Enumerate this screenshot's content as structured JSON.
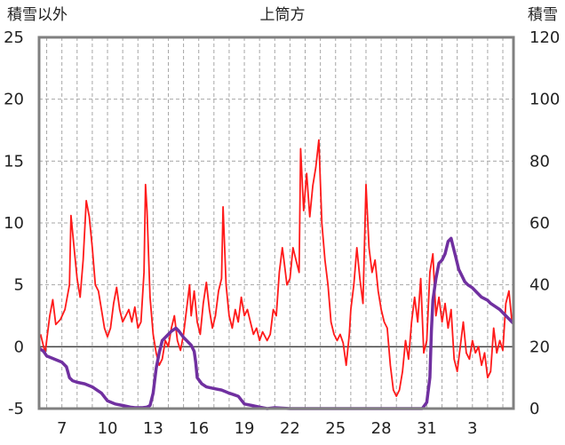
{
  "chart_data": {
    "type": "line",
    "title": "上筒方",
    "left_axis_label": "積雪以外",
    "right_axis_label": "積雪",
    "x_tick_labels": [
      "7",
      "10",
      "13",
      "16",
      "19",
      "22",
      "25",
      "28",
      "31",
      "3"
    ],
    "y_left": {
      "min": -5,
      "max": 25,
      "ticks": [
        -5,
        0,
        5,
        10,
        15,
        20,
        25
      ]
    },
    "y_right": {
      "min": 0,
      "max": 120,
      "ticks": [
        0,
        20,
        40,
        60,
        80,
        100,
        120
      ]
    },
    "x_range": [
      5.5,
      36.7
    ],
    "grid": {
      "horizontal": "dashed",
      "vertical": "dashed"
    },
    "colors": {
      "series_red": "#ff1a1a",
      "series_purple": "#7030a0",
      "frame": "#808080",
      "zero_line": "#404040"
    },
    "series": [
      {
        "axis": "left",
        "color": "#ff1a1a",
        "points": [
          [
            5.6,
            1.0
          ],
          [
            5.9,
            -0.5
          ],
          [
            6.2,
            2.5
          ],
          [
            6.4,
            3.8
          ],
          [
            6.6,
            1.8
          ],
          [
            6.9,
            2.2
          ],
          [
            7.2,
            3.0
          ],
          [
            7.5,
            5.0
          ],
          [
            7.6,
            10.6
          ],
          [
            7.8,
            8.0
          ],
          [
            8.0,
            5.5
          ],
          [
            8.2,
            4.0
          ],
          [
            8.4,
            7.0
          ],
          [
            8.6,
            11.8
          ],
          [
            8.8,
            10.5
          ],
          [
            9.0,
            8.0
          ],
          [
            9.2,
            5.0
          ],
          [
            9.4,
            4.5
          ],
          [
            9.6,
            3.0
          ],
          [
            9.8,
            1.5
          ],
          [
            10.0,
            0.8
          ],
          [
            10.2,
            1.5
          ],
          [
            10.4,
            3.5
          ],
          [
            10.6,
            4.8
          ],
          [
            10.8,
            3.0
          ],
          [
            11.0,
            2.0
          ],
          [
            11.2,
            2.5
          ],
          [
            11.4,
            3.0
          ],
          [
            11.6,
            2.0
          ],
          [
            11.8,
            3.2
          ],
          [
            12.0,
            1.5
          ],
          [
            12.2,
            2.0
          ],
          [
            12.4,
            6.0
          ],
          [
            12.5,
            13.1
          ],
          [
            12.6,
            11.0
          ],
          [
            12.8,
            4.0
          ],
          [
            13.0,
            1.0
          ],
          [
            13.2,
            -0.5
          ],
          [
            13.4,
            -1.5
          ],
          [
            13.6,
            -1.0
          ],
          [
            13.8,
            0.5
          ],
          [
            14.0,
            0.0
          ],
          [
            14.2,
            1.5
          ],
          [
            14.4,
            2.5
          ],
          [
            14.6,
            0.5
          ],
          [
            14.8,
            -0.3
          ],
          [
            15.0,
            1.0
          ],
          [
            15.2,
            3.0
          ],
          [
            15.4,
            5.0
          ],
          [
            15.5,
            2.5
          ],
          [
            15.7,
            4.5
          ],
          [
            15.9,
            2.0
          ],
          [
            16.1,
            1.0
          ],
          [
            16.3,
            3.5
          ],
          [
            16.5,
            5.2
          ],
          [
            16.7,
            3.0
          ],
          [
            16.9,
            1.5
          ],
          [
            17.1,
            2.5
          ],
          [
            17.3,
            4.5
          ],
          [
            17.5,
            5.5
          ],
          [
            17.6,
            11.3
          ],
          [
            17.8,
            5.0
          ],
          [
            18.0,
            2.5
          ],
          [
            18.2,
            1.5
          ],
          [
            18.4,
            3.0
          ],
          [
            18.6,
            2.0
          ],
          [
            18.8,
            4.0
          ],
          [
            19.0,
            2.5
          ],
          [
            19.2,
            3.0
          ],
          [
            19.4,
            2.0
          ],
          [
            19.6,
            1.0
          ],
          [
            19.8,
            1.5
          ],
          [
            20.0,
            0.5
          ],
          [
            20.2,
            1.2
          ],
          [
            20.5,
            0.5
          ],
          [
            20.7,
            1.0
          ],
          [
            20.9,
            3.0
          ],
          [
            21.1,
            2.5
          ],
          [
            21.3,
            6.0
          ],
          [
            21.5,
            8.0
          ],
          [
            21.6,
            7.0
          ],
          [
            21.8,
            5.0
          ],
          [
            22.0,
            5.5
          ],
          [
            22.2,
            8.0
          ],
          [
            22.4,
            7.0
          ],
          [
            22.6,
            6.0
          ],
          [
            22.7,
            16.0
          ],
          [
            22.9,
            11.0
          ],
          [
            23.1,
            14.0
          ],
          [
            23.3,
            10.5
          ],
          [
            23.5,
            13.0
          ],
          [
            23.7,
            14.5
          ],
          [
            23.9,
            16.7
          ],
          [
            24.1,
            10.0
          ],
          [
            24.3,
            7.0
          ],
          [
            24.5,
            5.0
          ],
          [
            24.7,
            2.0
          ],
          [
            24.9,
            1.0
          ],
          [
            25.1,
            0.5
          ],
          [
            25.3,
            1.0
          ],
          [
            25.5,
            0.3
          ],
          [
            25.7,
            -1.5
          ],
          [
            25.9,
            1.0
          ],
          [
            26.0,
            3.0
          ],
          [
            26.2,
            5.0
          ],
          [
            26.4,
            8.0
          ],
          [
            26.6,
            5.5
          ],
          [
            26.8,
            3.5
          ],
          [
            27.0,
            13.1
          ],
          [
            27.2,
            8.0
          ],
          [
            27.4,
            6.0
          ],
          [
            27.6,
            7.0
          ],
          [
            27.8,
            4.5
          ],
          [
            28.0,
            3.0
          ],
          [
            28.2,
            2.0
          ],
          [
            28.4,
            1.5
          ],
          [
            28.6,
            -1.5
          ],
          [
            28.8,
            -3.5
          ],
          [
            29.0,
            -4.0
          ],
          [
            29.2,
            -3.5
          ],
          [
            29.4,
            -2.0
          ],
          [
            29.6,
            0.5
          ],
          [
            29.8,
            -1.0
          ],
          [
            30.0,
            2.0
          ],
          [
            30.2,
            4.0
          ],
          [
            30.4,
            2.0
          ],
          [
            30.6,
            5.5
          ],
          [
            30.8,
            -0.5
          ],
          [
            31.0,
            0.5
          ],
          [
            31.2,
            6.0
          ],
          [
            31.4,
            7.5
          ],
          [
            31.6,
            2.5
          ],
          [
            31.8,
            4.0
          ],
          [
            32.0,
            2.0
          ],
          [
            32.2,
            3.5
          ],
          [
            32.4,
            1.5
          ],
          [
            32.6,
            3.0
          ],
          [
            32.8,
            -1.0
          ],
          [
            33.0,
            -2.0
          ],
          [
            33.2,
            0.0
          ],
          [
            33.4,
            2.0
          ],
          [
            33.6,
            -0.5
          ],
          [
            33.8,
            -1.0
          ],
          [
            34.0,
            0.5
          ],
          [
            34.2,
            -0.5
          ],
          [
            34.4,
            0.0
          ],
          [
            34.6,
            -1.5
          ],
          [
            34.8,
            -0.5
          ],
          [
            35.0,
            -2.5
          ],
          [
            35.2,
            -2.0
          ],
          [
            35.4,
            1.5
          ],
          [
            35.6,
            -0.5
          ],
          [
            35.8,
            0.5
          ],
          [
            36.0,
            -0.3
          ],
          [
            36.2,
            3.5
          ],
          [
            36.4,
            4.5
          ],
          [
            36.6,
            2.0
          ],
          [
            36.7,
            2.0
          ]
        ]
      },
      {
        "axis": "right",
        "color": "#7030a0",
        "points": [
          [
            5.5,
            19.5
          ],
          [
            5.8,
            18.5
          ],
          [
            6.0,
            17.0
          ],
          [
            6.5,
            16.0
          ],
          [
            7.0,
            15.0
          ],
          [
            7.3,
            13.5
          ],
          [
            7.5,
            10.0
          ],
          [
            7.7,
            9.0
          ],
          [
            8.0,
            8.5
          ],
          [
            8.5,
            8.0
          ],
          [
            9.0,
            7.0
          ],
          [
            9.3,
            6.0
          ],
          [
            9.6,
            5.0
          ],
          [
            10.0,
            2.5
          ],
          [
            10.5,
            1.5
          ],
          [
            11.0,
            1.0
          ],
          [
            11.5,
            0.5
          ],
          [
            11.8,
            0.3
          ],
          [
            12.3,
            0.3
          ],
          [
            12.6,
            0.5
          ],
          [
            12.8,
            1.0
          ],
          [
            13.0,
            5.0
          ],
          [
            13.2,
            13.0
          ],
          [
            13.4,
            18.0
          ],
          [
            13.6,
            22.0
          ],
          [
            13.8,
            23.0
          ],
          [
            14.0,
            24.0
          ],
          [
            14.2,
            25.0
          ],
          [
            14.5,
            26.0
          ],
          [
            14.7,
            25.0
          ],
          [
            15.0,
            23.0
          ],
          [
            15.5,
            20.5
          ],
          [
            15.7,
            18.5
          ],
          [
            15.8,
            15.0
          ],
          [
            15.9,
            10.0
          ],
          [
            16.2,
            8.0
          ],
          [
            16.5,
            7.0
          ],
          [
            17.0,
            6.5
          ],
          [
            17.5,
            6.0
          ],
          [
            18.0,
            5.0
          ],
          [
            18.3,
            4.5
          ],
          [
            18.6,
            4.0
          ],
          [
            19.0,
            1.5
          ],
          [
            19.5,
            1.0
          ],
          [
            20.0,
            0.5
          ],
          [
            20.5,
            0.0
          ],
          [
            21.0,
            0.3
          ],
          [
            22.0,
            0.0
          ],
          [
            23.0,
            0.0
          ],
          [
            24.0,
            0.0
          ],
          [
            25.0,
            0.0
          ],
          [
            26.0,
            0.0
          ],
          [
            27.0,
            0.0
          ],
          [
            28.0,
            0.0
          ],
          [
            29.0,
            0.0
          ],
          [
            30.0,
            0.0
          ],
          [
            30.7,
            0.0
          ],
          [
            31.0,
            2.0
          ],
          [
            31.2,
            10.0
          ],
          [
            31.3,
            25.0
          ],
          [
            31.4,
            35.0
          ],
          [
            31.6,
            42.0
          ],
          [
            31.8,
            47.0
          ],
          [
            32.0,
            48.0
          ],
          [
            32.2,
            50.0
          ],
          [
            32.4,
            54.0
          ],
          [
            32.6,
            55.0
          ],
          [
            32.7,
            53.0
          ],
          [
            32.9,
            49.0
          ],
          [
            33.1,
            45.0
          ],
          [
            33.3,
            43.0
          ],
          [
            33.5,
            41.0
          ],
          [
            33.7,
            40.0
          ],
          [
            34.0,
            39.0
          ],
          [
            34.3,
            37.5
          ],
          [
            34.6,
            36.0
          ],
          [
            35.0,
            35.0
          ],
          [
            35.2,
            34.0
          ],
          [
            35.5,
            33.0
          ],
          [
            35.8,
            32.0
          ],
          [
            36.0,
            31.0
          ],
          [
            36.2,
            30.0
          ],
          [
            36.4,
            29.0
          ],
          [
            36.6,
            28.0
          ],
          [
            36.7,
            27.5
          ]
        ]
      }
    ]
  }
}
